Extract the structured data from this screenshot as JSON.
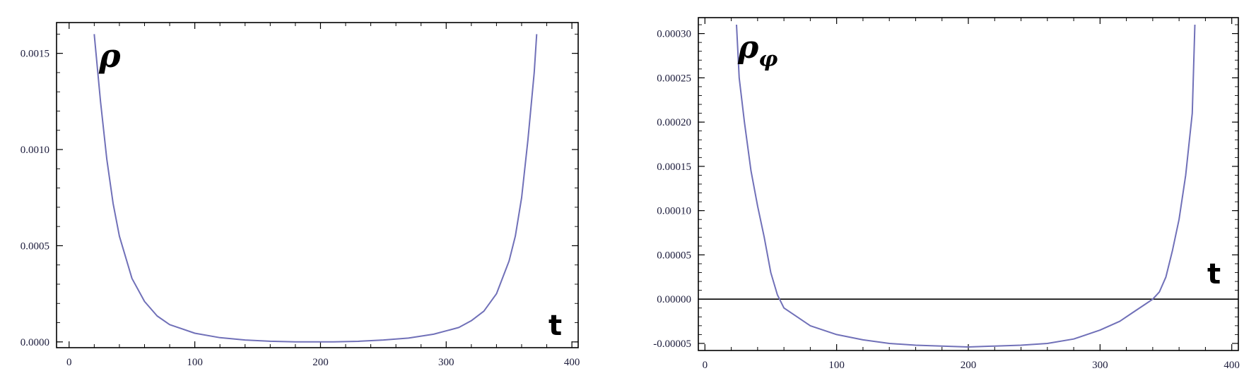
{
  "chart_data": [
    {
      "type": "line",
      "title": "",
      "plot_label": "ρ",
      "xlabel": "t",
      "ylabel": "",
      "xlim": [
        -10,
        405
      ],
      "ylim": [
        -3e-05,
        0.00166
      ],
      "x_ticks": [
        0,
        100,
        200,
        300,
        400
      ],
      "x_tick_labels": [
        "0",
        "100",
        "200",
        "300",
        "400"
      ],
      "y_ticks": [
        0.0,
        0.0005,
        0.001,
        0.0015
      ],
      "y_tick_labels": [
        "0.0000",
        "0.0005",
        "0.0010",
        "0.0015"
      ],
      "grid": false,
      "line_color": "#7070b8",
      "zero_line": false,
      "series": [
        {
          "x": [
            20,
            25,
            30,
            35,
            40,
            50,
            60,
            70,
            80,
            100,
            120,
            140,
            160,
            180,
            195,
            210,
            230,
            250,
            270,
            290,
            310,
            320,
            330,
            340,
            350,
            355,
            360,
            365,
            370,
            372
          ],
          "values": [
            0.0016,
            0.00125,
            0.00095,
            0.00072,
            0.00055,
            0.00033,
            0.00021,
            0.000135,
            9e-05,
            4.5e-05,
            2.2e-05,
            1e-05,
            3.5e-06,
            5e-07,
            0.0,
            5e-07,
            3e-06,
            1e-05,
            2e-05,
            4e-05,
            7.5e-05,
            0.00011,
            0.00016,
            0.00025,
            0.00042,
            0.00055,
            0.00075,
            0.00105,
            0.0014,
            0.0016
          ]
        }
      ]
    },
    {
      "type": "line",
      "title": "",
      "plot_label": "ρ",
      "plot_label_sub": "φ",
      "xlabel": "t",
      "ylabel": "",
      "xlim": [
        -5,
        405
      ],
      "ylim": [
        -5.8e-05,
        0.000318
      ],
      "x_ticks": [
        0,
        100,
        200,
        300,
        400
      ],
      "x_tick_labels": [
        "0",
        "100",
        "200",
        "300",
        "400"
      ],
      "y_ticks": [
        -5e-05,
        0.0,
        5e-05,
        0.0001,
        0.00015,
        0.0002,
        0.00025,
        0.0003
      ],
      "y_tick_labels": [
        "-0.00005",
        "0.00000",
        "0.00005",
        "0.00010",
        "0.00015",
        "0.00020",
        "0.00025",
        "0.00030"
      ],
      "grid": false,
      "line_color": "#7070b8",
      "zero_line": true,
      "series": [
        {
          "x": [
            24,
            26,
            30,
            35,
            40,
            45,
            50,
            55,
            60,
            70,
            80,
            100,
            120,
            140,
            160,
            180,
            200,
            220,
            240,
            260,
            280,
            300,
            315,
            325,
            335,
            340,
            345,
            350,
            355,
            360,
            365,
            370,
            372
          ],
          "values": [
            0.00031,
            0.00025,
            0.0002,
            0.000145,
            0.000105,
            7e-05,
            3e-05,
            5e-06,
            -1e-05,
            -2e-05,
            -3e-05,
            -4e-05,
            -4.6e-05,
            -5e-05,
            -5.2e-05,
            -5.3e-05,
            -5.4e-05,
            -5.3e-05,
            -5.2e-05,
            -5e-05,
            -4.5e-05,
            -3.5e-05,
            -2.5e-05,
            -1.5e-05,
            -5e-06,
            0.0,
            8e-06,
            2.5e-05,
            5.5e-05,
            9e-05,
            0.00014,
            0.00021,
            0.00031
          ]
        }
      ]
    }
  ]
}
